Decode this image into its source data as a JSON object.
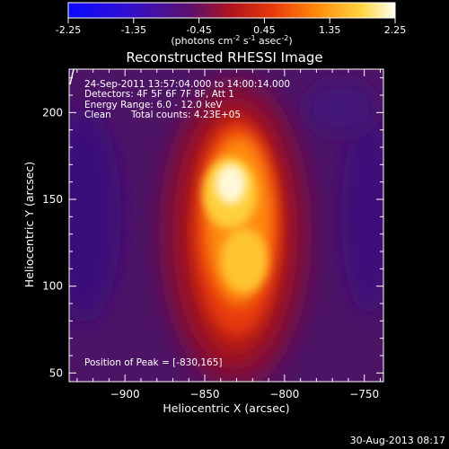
{
  "chart_data": {
    "type": "heatmap",
    "title": "Reconstructed RHESSI Image",
    "colorbar": {
      "ticks": [
        "-2.25",
        "-1.35",
        "-0.45",
        "0.45",
        "1.35",
        "2.25"
      ],
      "range": [
        -2.25,
        2.25
      ],
      "unit_main": "(photons cm",
      "unit_sup1": "-2",
      "unit_mid": " s",
      "unit_sup2": "-1",
      "unit_end": " asec",
      "unit_sup3": "-2",
      "unit_close": ")"
    },
    "xlabel": "Heliocentric X (arcsec)",
    "ylabel": "Heliocentric Y (arcsec)",
    "xlim": [
      -935,
      -738
    ],
    "ylim": [
      45,
      225
    ],
    "xticks": [
      {
        "value": -900,
        "label": "−900"
      },
      {
        "value": -850,
        "label": "−850"
      },
      {
        "value": -800,
        "label": "−800"
      },
      {
        "value": -750,
        "label": "−750"
      }
    ],
    "yticks": [
      {
        "value": 50,
        "label": "50"
      },
      {
        "value": 100,
        "label": "100"
      },
      {
        "value": 150,
        "label": "150"
      },
      {
        "value": 200,
        "label": "200"
      }
    ],
    "annotations": {
      "line1": "24-Sep-2011 13:57:04.000 to 14:00:14.000",
      "line2": "Detectors: 4F 5F 6F 7F 8F, Att 1",
      "line3": "Energy Range: 6.0 - 12.0 keV",
      "line4_left": "Clean",
      "line4_right": "Total counts: 4.23E+05",
      "peak": "Position of Peak = [-830,165]"
    },
    "peak": {
      "x": -830,
      "y": 165
    },
    "footer_timestamp": "30-Aug-2013 08:17"
  }
}
